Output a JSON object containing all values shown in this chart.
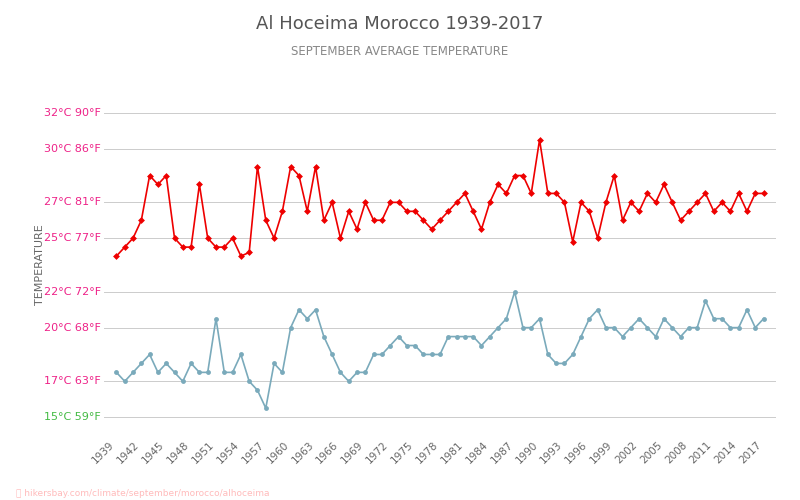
{
  "title": "Al Hoceima Morocco 1939-2017",
  "subtitle": "SEPTEMBER AVERAGE TEMPERATURE",
  "ylabel": "TEMPERATURE",
  "title_color": "#555555",
  "subtitle_color": "#888888",
  "ylabel_color": "#666666",
  "background_color": "#ffffff",
  "grid_color": "#cccccc",
  "day_color": "#ee0000",
  "night_color": "#7aaabb",
  "watermark": "hikersbay.com/climate/september/morocco/alhoceima",
  "watermark_color": "#ffbbbb",
  "years": [
    1939,
    1940,
    1941,
    1942,
    1943,
    1944,
    1945,
    1946,
    1947,
    1948,
    1949,
    1950,
    1951,
    1952,
    1953,
    1954,
    1955,
    1956,
    1957,
    1958,
    1959,
    1960,
    1961,
    1962,
    1963,
    1964,
    1965,
    1966,
    1967,
    1968,
    1969,
    1970,
    1971,
    1972,
    1973,
    1974,
    1975,
    1976,
    1977,
    1978,
    1979,
    1980,
    1981,
    1982,
    1983,
    1984,
    1985,
    1986,
    1987,
    1988,
    1989,
    1990,
    1991,
    1992,
    1993,
    1994,
    1995,
    1996,
    1997,
    1998,
    1999,
    2000,
    2001,
    2002,
    2003,
    2004,
    2005,
    2006,
    2007,
    2008,
    2009,
    2010,
    2011,
    2012,
    2013,
    2014,
    2015,
    2016,
    2017
  ],
  "day_temps": [
    24.0,
    24.5,
    25.0,
    26.0,
    28.5,
    28.0,
    28.5,
    25.0,
    24.5,
    24.5,
    28.0,
    25.0,
    24.5,
    24.5,
    25.0,
    24.0,
    24.2,
    29.0,
    26.0,
    25.0,
    26.5,
    29.0,
    28.5,
    26.5,
    29.0,
    26.0,
    27.0,
    25.0,
    26.5,
    25.5,
    27.0,
    26.0,
    26.0,
    27.0,
    27.0,
    26.5,
    26.5,
    26.0,
    25.5,
    26.0,
    26.5,
    27.0,
    27.5,
    26.5,
    25.5,
    27.0,
    28.0,
    27.5,
    28.5,
    28.5,
    27.5,
    30.5,
    27.5,
    27.5,
    27.0,
    24.8,
    27.0,
    26.5,
    25.0,
    27.0,
    28.5,
    26.0,
    27.0,
    26.5,
    27.5,
    27.0,
    28.0,
    27.0,
    26.0,
    26.5,
    27.0,
    27.5,
    26.5,
    27.0,
    26.5,
    27.5,
    26.5,
    27.5,
    27.5
  ],
  "night_temps": [
    17.5,
    17.0,
    17.5,
    18.0,
    18.5,
    17.5,
    18.0,
    17.5,
    17.0,
    18.0,
    17.5,
    17.5,
    20.5,
    17.5,
    17.5,
    18.5,
    17.0,
    16.5,
    15.5,
    18.0,
    17.5,
    20.0,
    21.0,
    20.5,
    21.0,
    19.5,
    18.5,
    17.5,
    17.0,
    17.5,
    17.5,
    18.5,
    18.5,
    19.0,
    19.5,
    19.0,
    19.0,
    18.5,
    18.5,
    18.5,
    19.5,
    19.5,
    19.5,
    19.5,
    19.0,
    19.5,
    20.0,
    20.5,
    22.0,
    20.0,
    20.0,
    20.5,
    18.5,
    18.0,
    18.0,
    18.5,
    19.5,
    20.5,
    21.0,
    20.0,
    20.0,
    19.5,
    20.0,
    20.5,
    20.0,
    19.5,
    20.5,
    20.0,
    19.5,
    20.0,
    20.0,
    21.5,
    20.5,
    20.5,
    20.0,
    20.0,
    21.0,
    20.0,
    20.5
  ],
  "yticks_c": [
    15,
    17,
    20,
    22,
    25,
    27,
    30,
    32
  ],
  "yticks_f": [
    59,
    63,
    68,
    72,
    77,
    81,
    86,
    90
  ],
  "ytick_colors": [
    "#44bb44",
    "#ee2288",
    "#ee2288",
    "#ee2288",
    "#ee2288",
    "#ee2288",
    "#ee2288",
    "#ee2288"
  ],
  "ylim": [
    14,
    33
  ],
  "xtick_years": [
    1939,
    1942,
    1945,
    1948,
    1951,
    1954,
    1957,
    1960,
    1963,
    1966,
    1969,
    1972,
    1975,
    1978,
    1981,
    1984,
    1987,
    1990,
    1993,
    1996,
    1999,
    2002,
    2005,
    2008,
    2011,
    2014,
    2017
  ],
  "xlim": [
    1937.5,
    2018.5
  ]
}
